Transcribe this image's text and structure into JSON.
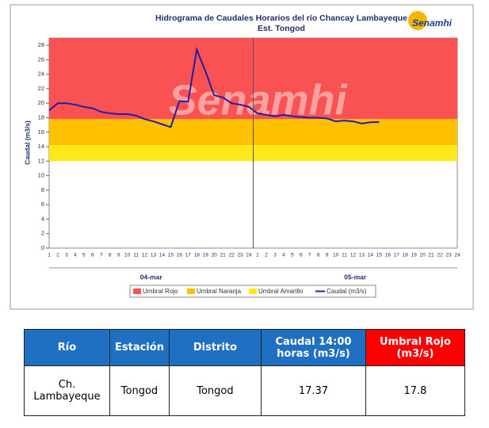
{
  "chart_data": {
    "type": "line",
    "title": "Hidrograma de Caudales Horarios del río Chancay Lambayeque",
    "subtitle": "Est. Tongod",
    "logo": "Senamhi",
    "watermark": "Senamhi",
    "y_label": "Caudal  (m3/s)",
    "ylim": [
      0,
      29
    ],
    "yticks": [
      0,
      2,
      4,
      6,
      8,
      10,
      12,
      14,
      16,
      18,
      20,
      22,
      24,
      26,
      28
    ],
    "categories": [
      "1",
      "2",
      "3",
      "4",
      "5",
      "6",
      "7",
      "8",
      "9",
      "10",
      "11",
      "12",
      "13",
      "14",
      "15",
      "16",
      "17",
      "18",
      "19",
      "20",
      "21",
      "22",
      "23",
      "24",
      "1",
      "2",
      "3",
      "4",
      "5",
      "6",
      "7",
      "8",
      "9",
      "10",
      "11",
      "12",
      "13",
      "14",
      "15",
      "16",
      "17",
      "18",
      "19",
      "20",
      "21",
      "22",
      "23",
      "24"
    ],
    "x_groups": [
      "04-mar",
      "05-mar"
    ],
    "series": [
      {
        "name": "Umbral Rojo",
        "color": "#fa5252",
        "value": 17.8
      },
      {
        "name": "Umbral Naranja",
        "color": "#ffc000",
        "value": 14.2
      },
      {
        "name": "Umbral Amarillo",
        "color": "#ffe81a",
        "value": 12
      },
      {
        "name": "Caudal (m3/s)",
        "color": "#1f1fa6",
        "values": [
          19.0,
          20.0,
          20.0,
          19.8,
          19.5,
          19.3,
          18.8,
          18.6,
          18.5,
          18.5,
          18.3,
          17.8,
          17.5,
          17.1,
          16.7,
          20.3,
          20.2,
          27.4,
          24.4,
          21.1,
          20.8,
          20.0,
          19.8,
          19.5,
          18.6,
          18.4,
          18.2,
          18.4,
          18.2,
          18.1,
          18.0,
          18.0,
          17.9,
          17.5,
          17.6,
          17.5,
          17.2,
          17.37,
          17.4,
          null,
          null,
          null,
          null,
          null,
          null,
          null,
          null,
          null
        ]
      }
    ]
  },
  "table": {
    "header": [
      "Río",
      "Estación",
      "Distrito",
      "Caudal 14:00 horas (m3/s)",
      "Umbral Rojo (m3/s)"
    ],
    "rows": [
      [
        "Ch. Lambayeque",
        "Tongod",
        "Tongod",
        "17.37",
        "17.8"
      ]
    ]
  }
}
